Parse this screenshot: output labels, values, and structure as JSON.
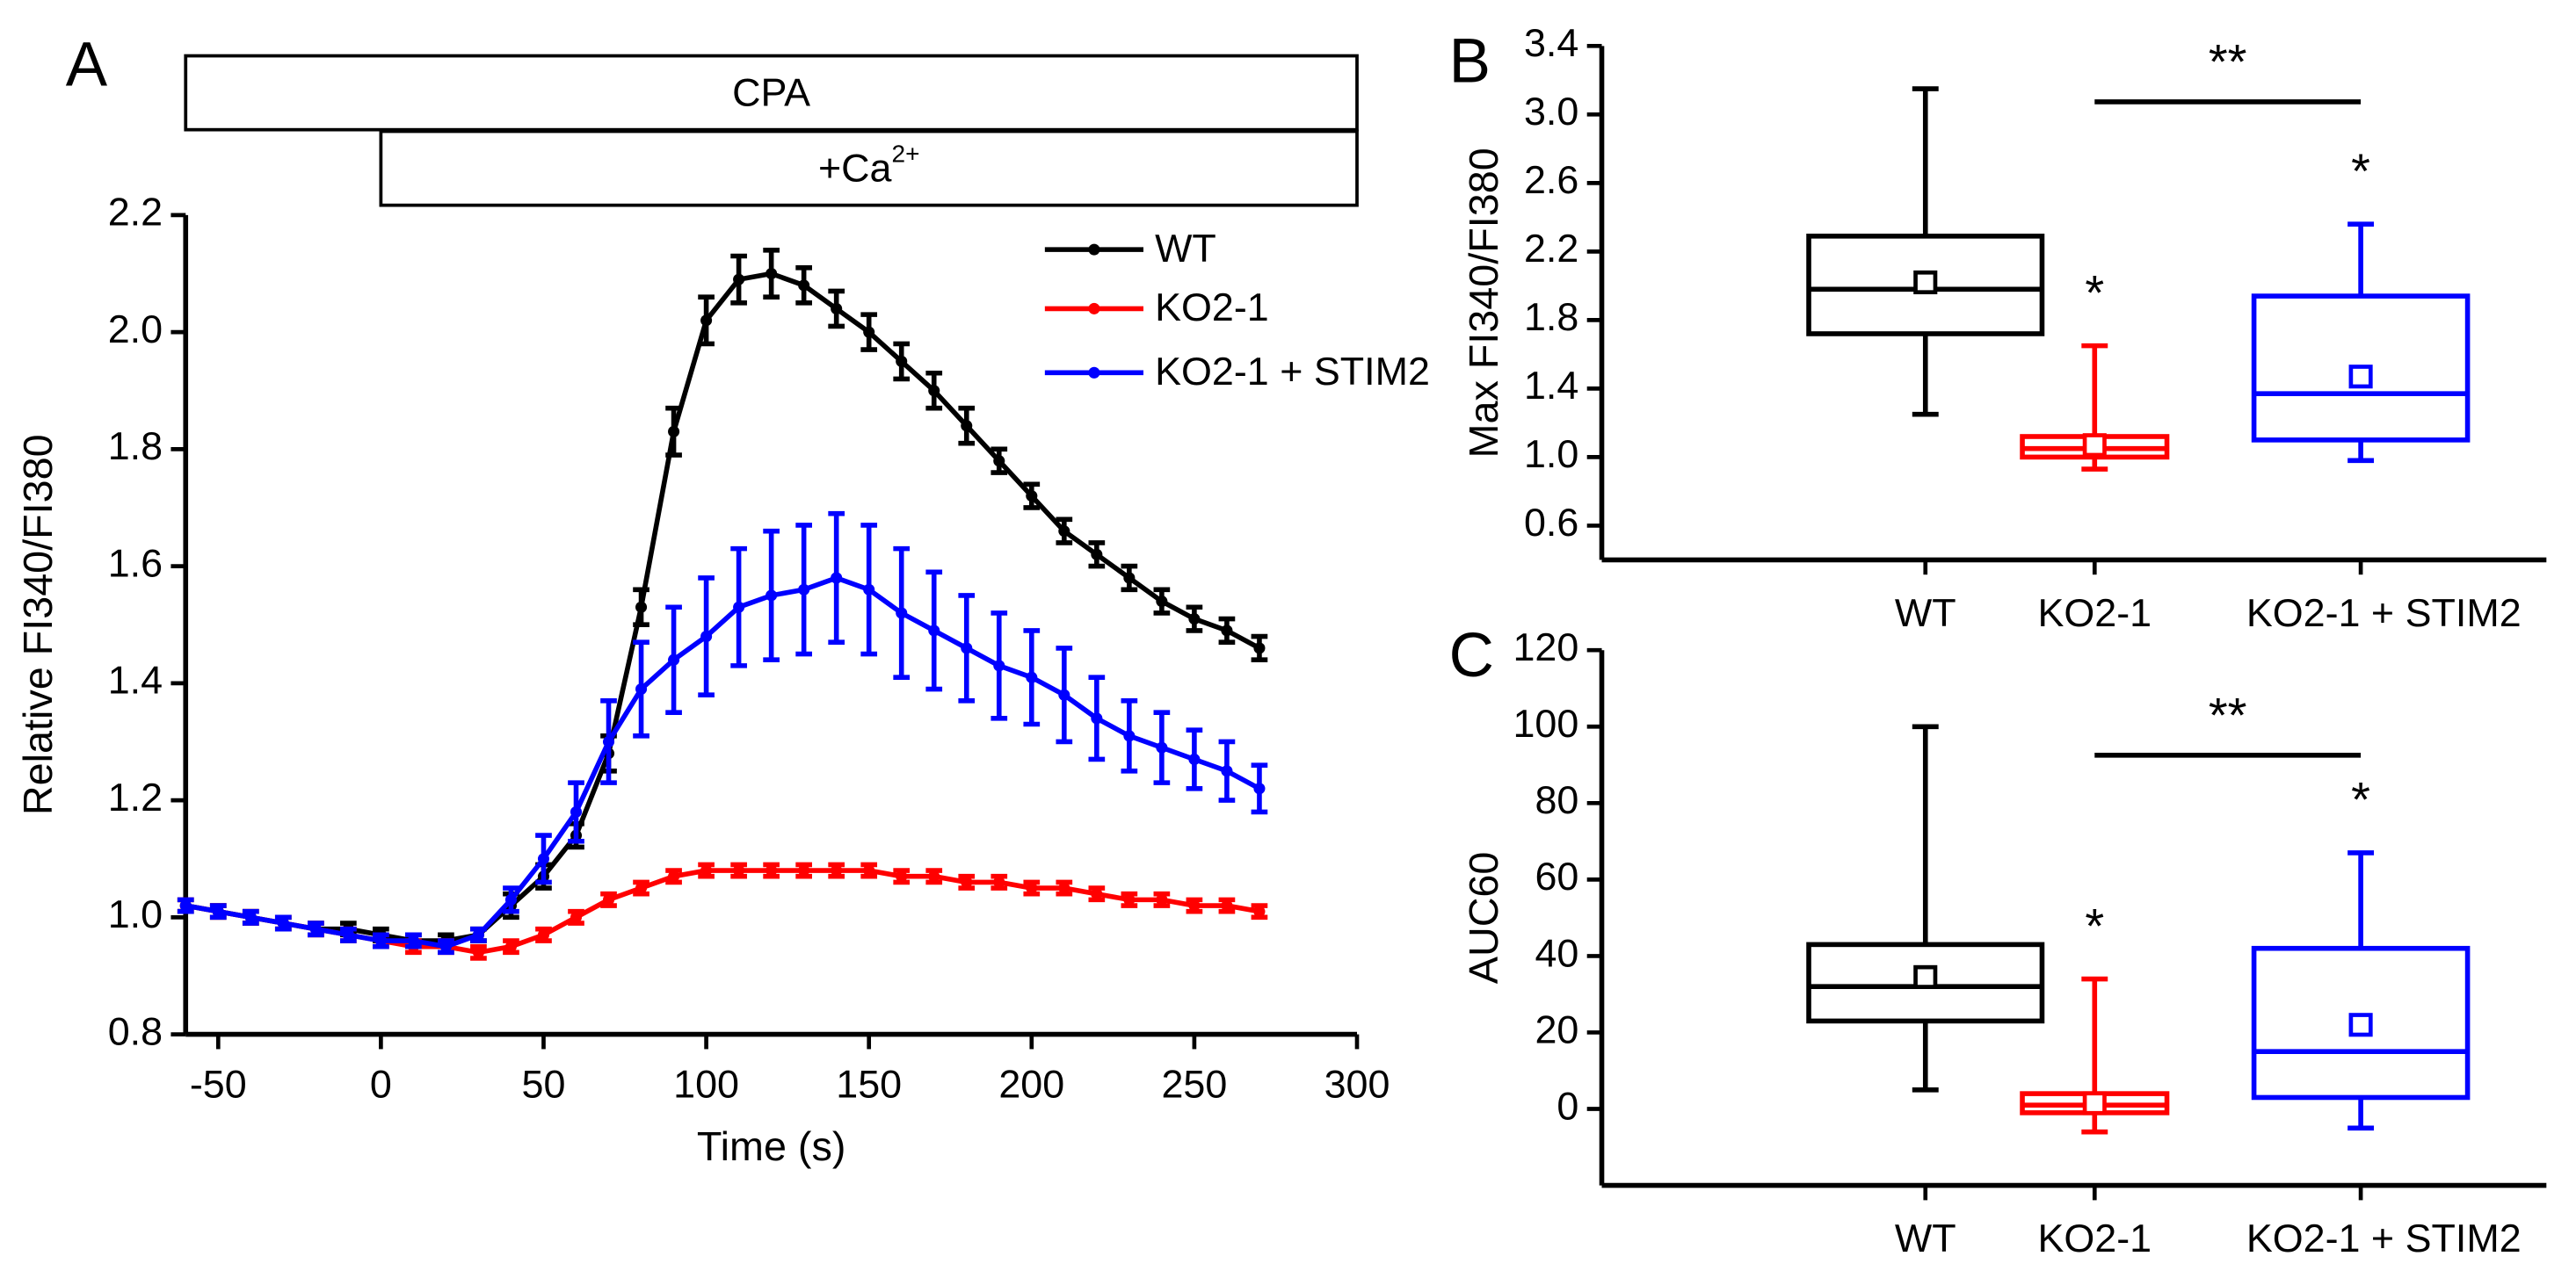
{
  "chart_data": [
    {
      "type": "line",
      "panel": "A",
      "xlabel": "Time (s)",
      "ylabel": "Relative FI340/FI380",
      "x": [
        -60,
        -50,
        -40,
        -30,
        -20,
        -10,
        0,
        10,
        20,
        30,
        40,
        50,
        60,
        70,
        80,
        90,
        100,
        110,
        120,
        130,
        140,
        150,
        160,
        170,
        180,
        190,
        200,
        210,
        220,
        230,
        240,
        250,
        260,
        270
      ],
      "series": [
        {
          "name": "WT",
          "color": "#000000",
          "values": [
            1.02,
            1.01,
            1.0,
            0.99,
            0.98,
            0.98,
            0.97,
            0.96,
            0.96,
            0.97,
            1.02,
            1.07,
            1.14,
            1.28,
            1.53,
            1.83,
            2.02,
            2.09,
            2.1,
            2.08,
            2.04,
            2.0,
            1.95,
            1.9,
            1.84,
            1.78,
            1.72,
            1.66,
            1.62,
            1.58,
            1.54,
            1.51,
            1.49,
            1.46
          ],
          "errors": [
            0.01,
            0.01,
            0.01,
            0.01,
            0.01,
            0.01,
            0.01,
            0.01,
            0.01,
            0.01,
            0.02,
            0.02,
            0.02,
            0.03,
            0.03,
            0.04,
            0.04,
            0.04,
            0.04,
            0.03,
            0.03,
            0.03,
            0.03,
            0.03,
            0.03,
            0.02,
            0.02,
            0.02,
            0.02,
            0.02,
            0.02,
            0.02,
            0.02,
            0.02
          ]
        },
        {
          "name": "KO2-1",
          "color": "#ff0000",
          "values": [
            1.02,
            1.01,
            1.0,
            0.99,
            0.98,
            0.97,
            0.96,
            0.95,
            0.95,
            0.94,
            0.95,
            0.97,
            1.0,
            1.03,
            1.05,
            1.07,
            1.08,
            1.08,
            1.08,
            1.08,
            1.08,
            1.08,
            1.07,
            1.07,
            1.06,
            1.06,
            1.05,
            1.05,
            1.04,
            1.03,
            1.03,
            1.02,
            1.02,
            1.01
          ],
          "errors": [
            0.01,
            0.01,
            0.01,
            0.01,
            0.01,
            0.01,
            0.01,
            0.01,
            0.01,
            0.01,
            0.01,
            0.01,
            0.01,
            0.01,
            0.01,
            0.01,
            0.01,
            0.01,
            0.01,
            0.01,
            0.01,
            0.01,
            0.01,
            0.01,
            0.01,
            0.01,
            0.01,
            0.01,
            0.01,
            0.01,
            0.01,
            0.01,
            0.01,
            0.01
          ]
        },
        {
          "name": "KO2-1 + STIM2",
          "color": "#0000ff",
          "values": [
            1.02,
            1.01,
            1.0,
            0.99,
            0.98,
            0.97,
            0.96,
            0.96,
            0.95,
            0.97,
            1.03,
            1.1,
            1.18,
            1.3,
            1.39,
            1.44,
            1.48,
            1.53,
            1.55,
            1.56,
            1.58,
            1.56,
            1.52,
            1.49,
            1.46,
            1.43,
            1.41,
            1.38,
            1.34,
            1.31,
            1.29,
            1.27,
            1.25,
            1.22
          ],
          "errors": [
            0.01,
            0.01,
            0.01,
            0.01,
            0.01,
            0.01,
            0.01,
            0.01,
            0.01,
            0.01,
            0.02,
            0.04,
            0.05,
            0.07,
            0.08,
            0.09,
            0.1,
            0.1,
            0.11,
            0.11,
            0.11,
            0.11,
            0.11,
            0.1,
            0.09,
            0.09,
            0.08,
            0.08,
            0.07,
            0.06,
            0.06,
            0.05,
            0.05,
            0.04
          ]
        }
      ],
      "treatments": [
        {
          "label": "CPA",
          "start": -60,
          "end": 300
        },
        {
          "label": "+Ca",
          "superscript": "2+",
          "start": 0,
          "end": 300
        }
      ],
      "xlim": [
        -60,
        300
      ],
      "xticks": [
        -50,
        0,
        50,
        100,
        150,
        200,
        250,
        300
      ],
      "ylim": [
        0.8,
        2.2
      ],
      "yticks": [
        0.8,
        {
          "value": 1.0,
          "label": "1.0"
        },
        1.2,
        1.4,
        1.6,
        1.8,
        {
          "value": 2.0,
          "label": "2.0"
        },
        2.2
      ],
      "legend": "upper right"
    },
    {
      "type": "box",
      "panel": "B",
      "ylabel": "Max FI340/FI380",
      "categories": [
        "WT",
        "KO2-1",
        "KO2-1 + STIM2"
      ],
      "boxes": [
        {
          "color": "#000000",
          "low": 1.25,
          "q1": 1.72,
          "median": 1.98,
          "q3": 2.29,
          "high": 3.15,
          "mean": 2.02
        },
        {
          "color": "#ff0000",
          "low": 0.93,
          "q1": 1.0,
          "median": 1.05,
          "q3": 1.12,
          "high": 1.65,
          "mean": 1.07
        },
        {
          "color": "#0000ff",
          "low": 0.98,
          "q1": 1.1,
          "median": 1.37,
          "q3": 1.94,
          "high": 2.36,
          "mean": 1.47
        }
      ],
      "annotations": [
        "*",
        "*",
        "**"
      ],
      "ylim": [
        0.4,
        3.4
      ],
      "yticks": [
        0.6,
        {
          "value": 1.0,
          "label": "1.0"
        },
        1.4,
        1.8,
        2.2,
        2.6,
        {
          "value": 3.0,
          "label": "3.0"
        },
        3.4
      ]
    },
    {
      "type": "box",
      "panel": "C",
      "ylabel": "AUC60",
      "categories": [
        "WT",
        "KO2-1",
        "KO2-1 + STIM2"
      ],
      "boxes": [
        {
          "color": "#000000",
          "low": 5,
          "q1": 23,
          "median": 32,
          "q3": 43,
          "high": 100,
          "mean": 34.5
        },
        {
          "color": "#ff0000",
          "low": -6,
          "q1": -1,
          "median": 1,
          "q3": 4,
          "high": 34,
          "mean": 1.5
        },
        {
          "color": "#0000ff",
          "low": -5,
          "q1": 3,
          "median": 15,
          "q3": 42,
          "high": 67,
          "mean": 22
        }
      ],
      "annotations": [
        "*",
        "*",
        "**"
      ],
      "ylim": [
        -20,
        120
      ],
      "yticks": [
        0,
        20,
        40,
        60,
        80,
        100,
        120
      ]
    }
  ]
}
